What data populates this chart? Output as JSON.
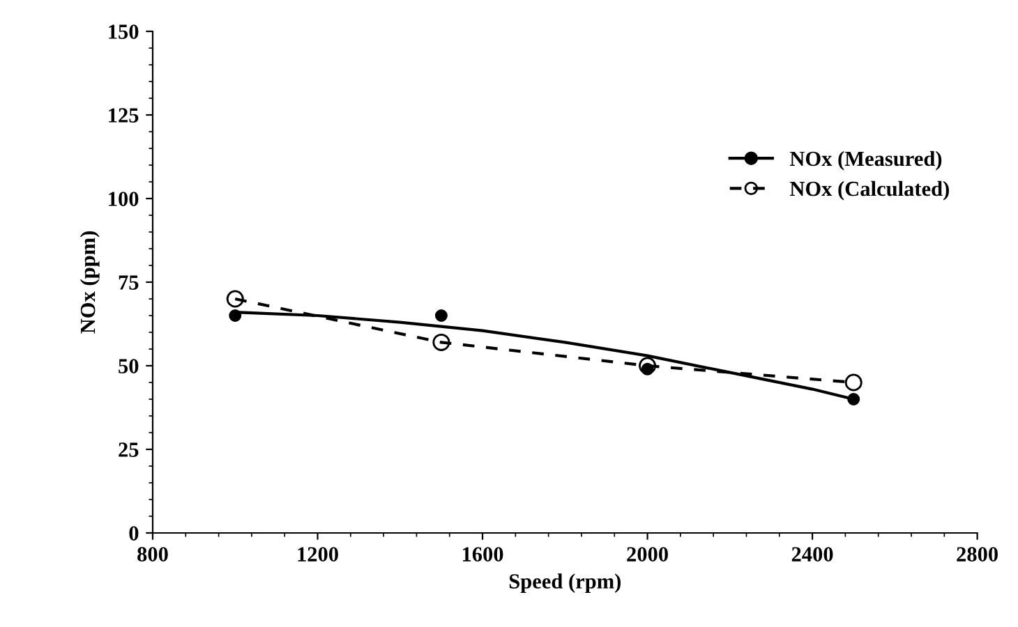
{
  "chart_data": {
    "type": "line",
    "xlabel": "Speed (rpm)",
    "ylabel": "NOx (ppm)",
    "xlim": [
      800,
      2800
    ],
    "xticks": [
      800,
      1200,
      1600,
      2000,
      2400,
      2800
    ],
    "ylim": [
      0,
      150
    ],
    "yticks": [
      0,
      25,
      50,
      75,
      100,
      125,
      150
    ],
    "grid": false,
    "legend": "top right",
    "series": [
      {
        "name": "NOx (Measured)",
        "type": "scatter",
        "color": "#000000",
        "marker": "circle",
        "line_style": "solid",
        "x": [
          1000,
          1500,
          2000,
          2500
        ],
        "values": [
          65,
          65,
          49,
          40
        ]
      },
      {
        "color": "#000000",
        "marker": "none",
        "line_style": "solid",
        "x": [
          1000,
          1200,
          1400,
          1600,
          1800,
          2000,
          2200,
          2400,
          2500
        ],
        "values": [
          66,
          65,
          63,
          60.5,
          57,
          53,
          48,
          43,
          40
        ]
      },
      {
        "name": "NOx (Calculated)",
        "color": "#000000",
        "marker": "circle",
        "line_style": "dashed",
        "x": [
          1000,
          1500,
          2000,
          2500
        ],
        "values": [
          70,
          57,
          50,
          45
        ]
      }
    ]
  }
}
